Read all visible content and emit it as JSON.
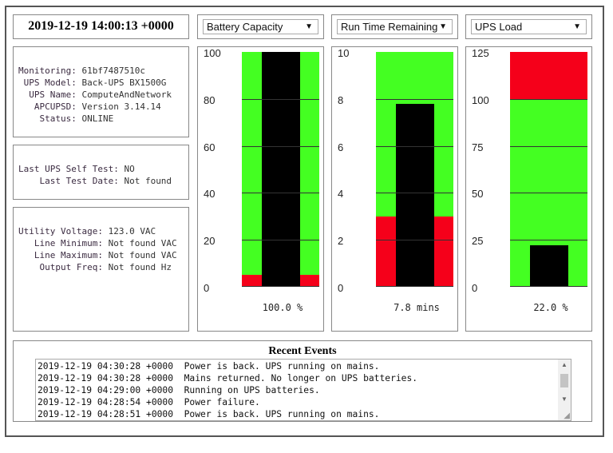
{
  "timestamp": "2019-12-19 14:00:13 +0000",
  "info": [
    {
      "label": "Monitoring:",
      "value": "61bf7487510c"
    },
    {
      "label": "UPS Model:",
      "value": "Back-UPS BX1500G"
    },
    {
      "label": "UPS Name:",
      "value": "ComputeAndNetwork"
    },
    {
      "label": "APCUPSD:",
      "value": "Version 3.14.14"
    },
    {
      "label": "Status:",
      "value": "ONLINE"
    }
  ],
  "selftest": [
    {
      "label": "Last UPS Self Test:",
      "value": "NO"
    },
    {
      "label": "Last Test Date:",
      "value": "Not found"
    }
  ],
  "power": [
    {
      "label": "Utility Voltage:",
      "value": "123.0 VAC"
    },
    {
      "label": "Line Minimum:",
      "value": "Not found VAC"
    },
    {
      "label": "Line Maximum:",
      "value": "Not found VAC"
    },
    {
      "label": "Output Freq:",
      "value": "Not found Hz"
    }
  ],
  "colors": {
    "good": "#44ff22",
    "bad": "#f5001a",
    "bar": "#000000"
  },
  "chart_data": [
    {
      "type": "bar",
      "selected": "Battery Capacity",
      "value": 100.0,
      "value_label": "100.0 %",
      "ylim": [
        0,
        100
      ],
      "ticks": [
        "0",
        "20",
        "40",
        "60",
        "80",
        "100"
      ],
      "tick_values": [
        0,
        20,
        40,
        60,
        80,
        100
      ],
      "bands": [
        {
          "from": 0,
          "to": 5,
          "status": "bad"
        },
        {
          "from": 5,
          "to": 100,
          "status": "good"
        }
      ]
    },
    {
      "type": "bar",
      "selected": "Run Time Remaining",
      "value": 7.8,
      "value_label": "7.8 mins",
      "ylim": [
        0,
        10
      ],
      "ticks": [
        "0",
        "2",
        "4",
        "6",
        "8",
        "10"
      ],
      "tick_values": [
        0,
        2,
        4,
        6,
        8,
        10
      ],
      "bands": [
        {
          "from": 0,
          "to": 3,
          "status": "bad"
        },
        {
          "from": 3,
          "to": 10,
          "status": "good"
        }
      ]
    },
    {
      "type": "bar",
      "selected": "UPS Load",
      "value": 22.0,
      "value_label": "22.0 %",
      "ylim": [
        0,
        125
      ],
      "ticks": [
        "0",
        "25",
        "50",
        "75",
        "100",
        "125"
      ],
      "tick_values": [
        0,
        25,
        50,
        75,
        100,
        125
      ],
      "bands": [
        {
          "from": 0,
          "to": 100,
          "status": "good"
        },
        {
          "from": 100,
          "to": 125,
          "status": "bad"
        }
      ]
    }
  ],
  "events": {
    "title": "Recent Events",
    "lines": [
      "2019-12-19 04:30:28 +0000  Power is back. UPS running on mains.",
      "2019-12-19 04:30:28 +0000  Mains returned. No longer on UPS batteries.",
      "2019-12-19 04:29:00 +0000  Running on UPS batteries.",
      "2019-12-19 04:28:54 +0000  Power failure.",
      "2019-12-19 04:28:51 +0000  Power is back. UPS running on mains."
    ]
  }
}
